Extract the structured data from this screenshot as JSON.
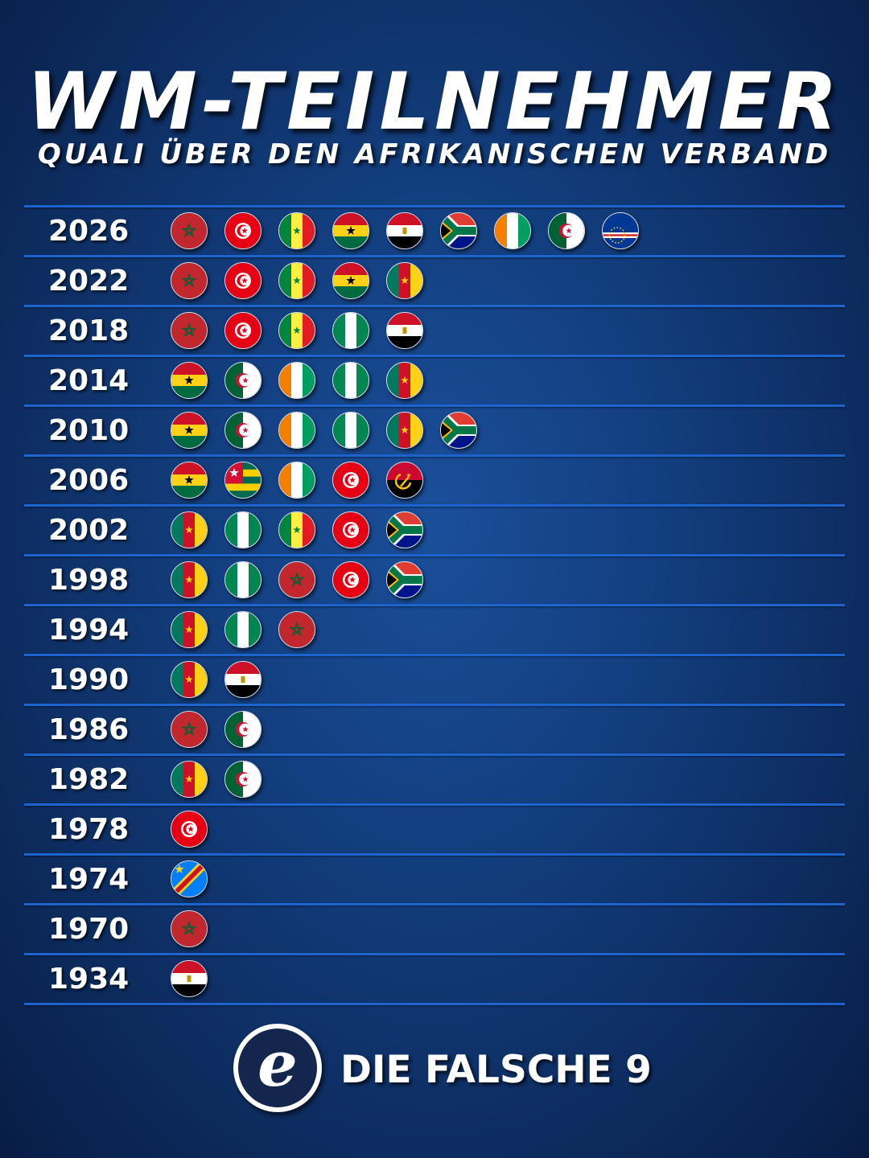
{
  "header": {
    "title": "WM-TEILNEHMER",
    "subtitle": "QUALI ÜBER DEN AFRIKANISCHEN VERBAND"
  },
  "rows": [
    {
      "year": "2026",
      "flags": [
        "morocco",
        "tunisia",
        "senegal",
        "ghana",
        "egypt",
        "south-africa",
        "ivory-coast",
        "algeria",
        "cape-verde"
      ]
    },
    {
      "year": "2022",
      "flags": [
        "morocco",
        "tunisia",
        "senegal",
        "ghana",
        "cameroon"
      ]
    },
    {
      "year": "2018",
      "flags": [
        "morocco",
        "tunisia",
        "senegal",
        "nigeria",
        "egypt"
      ]
    },
    {
      "year": "2014",
      "flags": [
        "ghana",
        "algeria",
        "ivory-coast",
        "nigeria",
        "cameroon"
      ]
    },
    {
      "year": "2010",
      "flags": [
        "ghana",
        "algeria",
        "ivory-coast",
        "nigeria",
        "cameroon",
        "south-africa"
      ]
    },
    {
      "year": "2006",
      "flags": [
        "ghana",
        "togo",
        "ivory-coast",
        "tunisia",
        "angola"
      ]
    },
    {
      "year": "2002",
      "flags": [
        "cameroon",
        "nigeria",
        "senegal",
        "tunisia",
        "south-africa"
      ]
    },
    {
      "year": "1998",
      "flags": [
        "cameroon",
        "nigeria",
        "morocco",
        "tunisia",
        "south-africa"
      ]
    },
    {
      "year": "1994",
      "flags": [
        "cameroon",
        "nigeria",
        "morocco"
      ]
    },
    {
      "year": "1990",
      "flags": [
        "cameroon",
        "egypt"
      ]
    },
    {
      "year": "1986",
      "flags": [
        "morocco",
        "algeria"
      ]
    },
    {
      "year": "1982",
      "flags": [
        "cameroon",
        "algeria"
      ]
    },
    {
      "year": "1978",
      "flags": [
        "tunisia"
      ]
    },
    {
      "year": "1974",
      "flags": [
        "dr-congo"
      ]
    },
    {
      "year": "1970",
      "flags": [
        "morocco"
      ]
    },
    {
      "year": "1934",
      "flags": [
        "egypt"
      ]
    }
  ],
  "footer": {
    "logo_letter": "e",
    "brand": "DIE FALSCHE 9"
  },
  "colors": {
    "background": "#133f80",
    "rule": "#1d64cf",
    "text": "#ffffff"
  }
}
